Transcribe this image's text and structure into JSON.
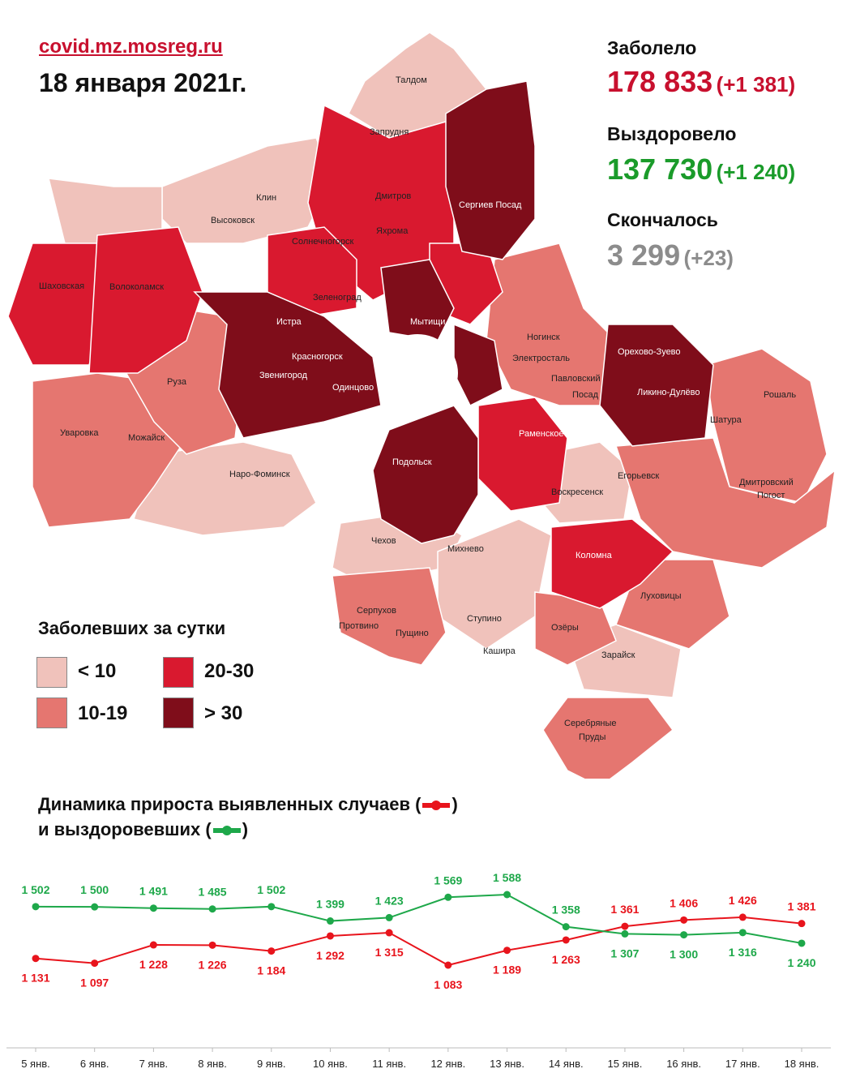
{
  "header": {
    "source": "covid.mz.mosreg.ru",
    "date": "18 января 2021г."
  },
  "stats": {
    "infected": {
      "label": "Заболело",
      "value": "178 833",
      "delta": "(+1 381)",
      "color": "#c8102e"
    },
    "recovered": {
      "label": "Выздоровело",
      "value": "137 730",
      "delta": "(+1 240)",
      "color": "#1a9b2a"
    },
    "deaths": {
      "label": "Скончалось",
      "value": "3 299",
      "delta": "(+23)",
      "color": "#8c8c8c"
    }
  },
  "legend": {
    "title": "Заболевших за сутки",
    "items": [
      {
        "label": "< 10",
        "color": "#f0c2bb"
      },
      {
        "label": "20-30",
        "color": "#d9192f"
      },
      {
        "label": "10-19",
        "color": "#e57670"
      },
      {
        "label": "> 30",
        "color": "#7f0d1a"
      }
    ]
  },
  "map": {
    "districts": [
      {
        "name": "Талдом",
        "category": "< 10"
      },
      {
        "name": "Запрудня",
        "category": "< 10"
      },
      {
        "name": "Дмитров",
        "category": "20-30"
      },
      {
        "name": "Яхрома",
        "category": "20-30"
      },
      {
        "name": "Сергиев Посад",
        "category": "> 30"
      },
      {
        "name": "Клин",
        "category": "< 10"
      },
      {
        "name": "Высоковск",
        "category": "< 10"
      },
      {
        "name": "Солнечногорск",
        "category": "20-30"
      },
      {
        "name": "Шаховская",
        "category": "20-30"
      },
      {
        "name": "Волоколамск",
        "category": "20-30"
      },
      {
        "name": "Зеленоград",
        "category": "20-30"
      },
      {
        "name": "Мытищи",
        "category": "> 30"
      },
      {
        "name": "Истра",
        "category": "> 30"
      },
      {
        "name": "Красногорск",
        "category": "> 30"
      },
      {
        "name": "Звенигород",
        "category": "> 30"
      },
      {
        "name": "Одинцово",
        "category": "> 30"
      },
      {
        "name": "Руза",
        "category": "10-19"
      },
      {
        "name": "Уваровка",
        "category": "10-19"
      },
      {
        "name": "Можайск",
        "category": "10-19"
      },
      {
        "name": "Наро-Фоминск",
        "category": "< 10"
      },
      {
        "name": "Ногинск",
        "category": "10-19"
      },
      {
        "name": "Электросталь",
        "category": "10-19"
      },
      {
        "name": "Павловский Посад",
        "category": "10-19"
      },
      {
        "name": "Орехово-Зуево",
        "category": "> 30"
      },
      {
        "name": "Ликино-Дулёво",
        "category": "> 30"
      },
      {
        "name": "Рошаль",
        "category": "10-19"
      },
      {
        "name": "Шатура",
        "category": "10-19"
      },
      {
        "name": "Раменское",
        "category": "20-30"
      },
      {
        "name": "Подольск",
        "category": "> 30"
      },
      {
        "name": "Егорьевск",
        "category": "10-19"
      },
      {
        "name": "Дмитровский Погост",
        "category": "10-19"
      },
      {
        "name": "Воскресенск",
        "category": "< 10"
      },
      {
        "name": "Чехов",
        "category": "< 10"
      },
      {
        "name": "Михнево",
        "category": "< 10"
      },
      {
        "name": "Коломна",
        "category": "20-30"
      },
      {
        "name": "Серпухов",
        "category": "10-19"
      },
      {
        "name": "Протвино",
        "category": "10-19"
      },
      {
        "name": "Пущино",
        "category": "10-19"
      },
      {
        "name": "Ступино",
        "category": "< 10"
      },
      {
        "name": "Озёры",
        "category": "10-19"
      },
      {
        "name": "Луховицы",
        "category": "10-19"
      },
      {
        "name": "Кашира",
        "category": "< 10"
      },
      {
        "name": "Зарайск",
        "category": "< 10"
      },
      {
        "name": "Серебряные Пруды",
        "category": "10-19"
      }
    ]
  },
  "dynamics": {
    "title_line1": "Динамика прироста выявленных случаев (",
    "title_line1_end": ")",
    "title_line2": "и выздоровевших (",
    "title_line2_end": ")"
  },
  "chart_data": {
    "type": "line",
    "categories": [
      "5 янв.",
      "6 янв.",
      "7 янв.",
      "8 янв.",
      "9 янв.",
      "10 янв.",
      "11 янв.",
      "12 янв.",
      "13 янв.",
      "14 янв.",
      "15 янв.",
      "16 янв.",
      "17 янв.",
      "18 янв."
    ],
    "series": [
      {
        "name": "выявленных случаев",
        "color": "#e8141c",
        "values": [
          1131,
          1097,
          1228,
          1226,
          1184,
          1292,
          1315,
          1083,
          1189,
          1263,
          1361,
          1406,
          1426,
          1381
        ],
        "labels": [
          "1 131",
          "1 097",
          "1 228",
          "1 226",
          "1 184",
          "1 292",
          "1 315",
          "1 083",
          "1 189",
          "1 263",
          "1 361",
          "1 406",
          "1 426",
          "1 381"
        ]
      },
      {
        "name": "выздоровевших",
        "color": "#1ea84a",
        "values": [
          1502,
          1500,
          1491,
          1485,
          1502,
          1399,
          1423,
          1569,
          1588,
          1358,
          1307,
          1300,
          1316,
          1240
        ],
        "labels": [
          "1 502",
          "1 500",
          "1 491",
          "1 485",
          "1 502",
          "1 399",
          "1 423",
          "1 569",
          "1 588",
          "1 358",
          "1 307",
          "1 300",
          "1 316",
          "1 240"
        ]
      }
    ],
    "grid": false
  }
}
